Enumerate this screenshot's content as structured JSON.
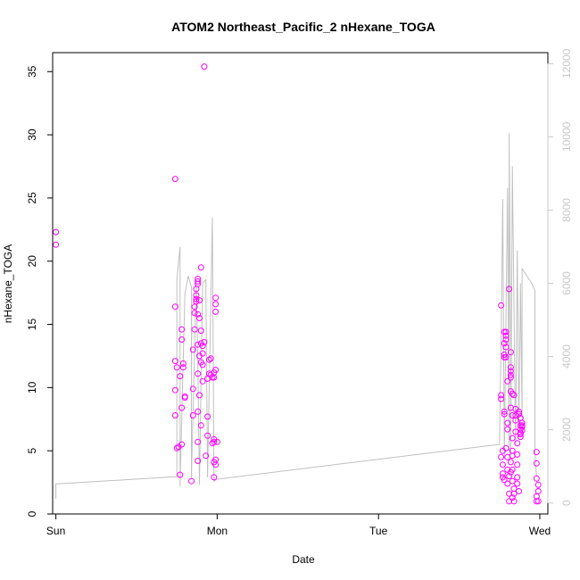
{
  "chart_data": {
    "type": "scatter",
    "title": "ATOM2 Northeast_Pacific_2 nHexane_TOGA",
    "xlabel": "Date",
    "ylabel": "nHexane_TOGA",
    "x_ticks": [
      {
        "label": "Sun",
        "value": 0
      },
      {
        "label": "Mon",
        "value": 1
      },
      {
        "label": "Tue",
        "value": 2
      },
      {
        "label": "Wed",
        "value": 3
      }
    ],
    "xlim": [
      -0.02,
      3.05
    ],
    "ylim": [
      0,
      36.5
    ],
    "y_ticks": [
      0,
      5,
      10,
      15,
      20,
      25,
      30,
      35
    ],
    "y2_ticks": [
      0,
      2000,
      4000,
      6000,
      8000,
      10000,
      12000
    ],
    "y2lim": [
      -300,
      12300
    ],
    "grid": false,
    "colors": {
      "points": "#ff00ff",
      "line": "#c0c0c0",
      "secondary_axis": "#c8c8c8"
    },
    "series": [
      {
        "type": "scatter",
        "points": [
          [
            0.0,
            22.3
          ],
          [
            0.0,
            21.3
          ],
          [
            0.74,
            26.5
          ],
          [
            0.74,
            16.4
          ],
          [
            0.74,
            12.1
          ],
          [
            0.75,
            11.6
          ],
          [
            0.74,
            9.8
          ],
          [
            0.74,
            7.8
          ],
          [
            0.75,
            5.2
          ],
          [
            0.76,
            5.3
          ],
          [
            0.77,
            3.1
          ],
          [
            0.78,
            5.5
          ],
          [
            0.78,
            8.4
          ],
          [
            0.77,
            10.9
          ],
          [
            0.79,
            11.6
          ],
          [
            0.79,
            11.9
          ],
          [
            0.78,
            13.8
          ],
          [
            0.78,
            14.6
          ],
          [
            0.8,
            9.2
          ],
          [
            0.8,
            9.3
          ],
          [
            0.84,
            2.6
          ],
          [
            0.85,
            7.8
          ],
          [
            0.85,
            9.9
          ],
          [
            0.85,
            13.0
          ],
          [
            0.86,
            14.6
          ],
          [
            0.86,
            15.9
          ],
          [
            0.86,
            16.4
          ],
          [
            0.87,
            16.8
          ],
          [
            0.87,
            17.3
          ],
          [
            0.87,
            17.0
          ],
          [
            0.87,
            17.8
          ],
          [
            0.88,
            18.2
          ],
          [
            0.88,
            18.6
          ],
          [
            0.88,
            18.4
          ],
          [
            0.89,
            16.9
          ],
          [
            0.88,
            15.8
          ],
          [
            0.89,
            15.5
          ],
          [
            0.88,
            13.4
          ],
          [
            0.89,
            12.5
          ],
          [
            0.88,
            11.1
          ],
          [
            0.89,
            9.4
          ],
          [
            0.88,
            8.1
          ],
          [
            0.88,
            5.7
          ],
          [
            0.88,
            4.2
          ],
          [
            0.9,
            13.5
          ],
          [
            0.9,
            14.5
          ],
          [
            0.9,
            12.0
          ],
          [
            0.91,
            11.8
          ],
          [
            0.91,
            12.7
          ],
          [
            0.91,
            13.3
          ],
          [
            0.92,
            13.6
          ],
          [
            0.91,
            10.5
          ],
          [
            0.9,
            7.0
          ],
          [
            0.9,
            19.5
          ],
          [
            0.92,
            35.4
          ],
          [
            0.93,
            4.6
          ],
          [
            0.94,
            7.7
          ],
          [
            0.94,
            6.2
          ],
          [
            0.94,
            10.7
          ],
          [
            0.95,
            11.1
          ],
          [
            0.95,
            12.2
          ],
          [
            0.96,
            12.3
          ],
          [
            0.96,
            11.0
          ],
          [
            0.97,
            10.8
          ],
          [
            0.97,
            5.6
          ],
          [
            0.98,
            4.1
          ],
          [
            0.98,
            5.7
          ],
          [
            0.98,
            2.9
          ],
          [
            0.99,
            3.9
          ],
          [
            0.99,
            4.3
          ],
          [
            0.98,
            11.2
          ],
          [
            0.99,
            11.4
          ],
          [
            0.98,
            10.8
          ],
          [
            0.99,
            16.0
          ],
          [
            0.99,
            16.6
          ],
          [
            0.99,
            17.1
          ],
          [
            0.98,
            5.9
          ],
          [
            1.0,
            5.7
          ],
          [
            2.76,
            16.5
          ],
          [
            2.76,
            9.4
          ],
          [
            2.76,
            9.1
          ],
          [
            2.77,
            5.0
          ],
          [
            2.76,
            4.5
          ],
          [
            2.77,
            3.9
          ],
          [
            2.77,
            3.2
          ],
          [
            2.77,
            2.9
          ],
          [
            2.78,
            2.7
          ],
          [
            2.78,
            7.9
          ],
          [
            2.78,
            8.1
          ],
          [
            2.78,
            12.4
          ],
          [
            2.78,
            12.6
          ],
          [
            2.79,
            13.2
          ],
          [
            2.78,
            13.5
          ],
          [
            2.78,
            14.4
          ],
          [
            2.79,
            14.1
          ],
          [
            2.79,
            13.8
          ],
          [
            2.79,
            14.4
          ],
          [
            2.79,
            12.4
          ],
          [
            2.8,
            10.5
          ],
          [
            2.8,
            7.2
          ],
          [
            2.8,
            6.7
          ],
          [
            2.79,
            5.2
          ],
          [
            2.8,
            4.5
          ],
          [
            2.8,
            3.5
          ],
          [
            2.81,
            3.0
          ],
          [
            2.8,
            2.4
          ],
          [
            2.81,
            1.6
          ],
          [
            2.81,
            1.0
          ],
          [
            2.81,
            17.8
          ],
          [
            2.82,
            12.8
          ],
          [
            2.82,
            11.6
          ],
          [
            2.82,
            11.3
          ],
          [
            2.82,
            10.8
          ],
          [
            2.82,
            11.0
          ],
          [
            2.82,
            9.7
          ],
          [
            2.83,
            9.5
          ],
          [
            2.82,
            8.4
          ],
          [
            2.83,
            7.8
          ],
          [
            2.83,
            6.0
          ],
          [
            2.83,
            5.0
          ],
          [
            2.83,
            4.6
          ],
          [
            2.82,
            4.1
          ],
          [
            2.83,
            3.5
          ],
          [
            2.82,
            3.3
          ],
          [
            2.83,
            2.6
          ],
          [
            2.84,
            2.0
          ],
          [
            2.84,
            1.6
          ],
          [
            2.83,
            1.3
          ],
          [
            2.84,
            1.0
          ],
          [
            2.84,
            9.4
          ],
          [
            2.85,
            8.3
          ],
          [
            2.85,
            7.8
          ],
          [
            2.85,
            7.4
          ],
          [
            2.85,
            6.5
          ],
          [
            2.86,
            5.6
          ],
          [
            2.86,
            4.7
          ],
          [
            2.86,
            3.9
          ],
          [
            2.86,
            2.9
          ],
          [
            2.86,
            2.4
          ],
          [
            2.87,
            1.8
          ],
          [
            2.87,
            8.1
          ],
          [
            2.87,
            7.9
          ],
          [
            2.88,
            7.6
          ],
          [
            2.88,
            7.0
          ],
          [
            2.88,
            6.7
          ],
          [
            2.88,
            6.3
          ],
          [
            2.89,
            7.2
          ],
          [
            2.89,
            7.0
          ],
          [
            2.89,
            6.6
          ],
          [
            2.89,
            6.9
          ],
          [
            2.89,
            7.2
          ],
          [
            2.88,
            6.1
          ],
          [
            2.88,
            6.4
          ],
          [
            2.98,
            4.9
          ],
          [
            2.98,
            4.0
          ],
          [
            2.98,
            2.8
          ],
          [
            2.99,
            2.3
          ],
          [
            2.99,
            1.8
          ],
          [
            2.98,
            1.4
          ],
          [
            2.98,
            1.0
          ],
          [
            2.99,
            1.0
          ]
        ]
      },
      {
        "type": "line",
        "axis": "right",
        "points": [
          [
            0.0,
            120
          ],
          [
            0.0,
            520
          ],
          [
            0.75,
            720
          ],
          [
            0.75,
            6100
          ],
          [
            0.77,
            7000
          ],
          [
            0.77,
            450
          ],
          [
            0.8,
            5700
          ],
          [
            0.82,
            6200
          ],
          [
            0.84,
            5900
          ],
          [
            0.84,
            680
          ],
          [
            0.87,
            6000
          ],
          [
            0.88,
            3800
          ],
          [
            0.89,
            500
          ],
          [
            0.91,
            6000
          ],
          [
            0.93,
            6100
          ],
          [
            0.93,
            5900
          ],
          [
            0.94,
            700
          ],
          [
            0.97,
            7800
          ],
          [
            0.98,
            600
          ],
          [
            1.0,
            650
          ],
          [
            2.75,
            1600
          ],
          [
            2.76,
            4500
          ],
          [
            2.77,
            8300
          ],
          [
            2.78,
            1200
          ],
          [
            2.8,
            8600
          ],
          [
            2.81,
            1400
          ],
          [
            2.81,
            10100
          ],
          [
            2.82,
            4100
          ],
          [
            2.82,
            1300
          ],
          [
            2.83,
            9200
          ],
          [
            2.85,
            1600
          ],
          [
            2.86,
            6900
          ],
          [
            2.87,
            2100
          ],
          [
            2.88,
            6000
          ],
          [
            2.89,
            2300
          ],
          [
            2.89,
            6400
          ],
          [
            2.95,
            6000
          ],
          [
            2.97,
            5800
          ],
          [
            2.97,
            1400
          ],
          [
            2.98,
            700
          ]
        ]
      }
    ]
  }
}
